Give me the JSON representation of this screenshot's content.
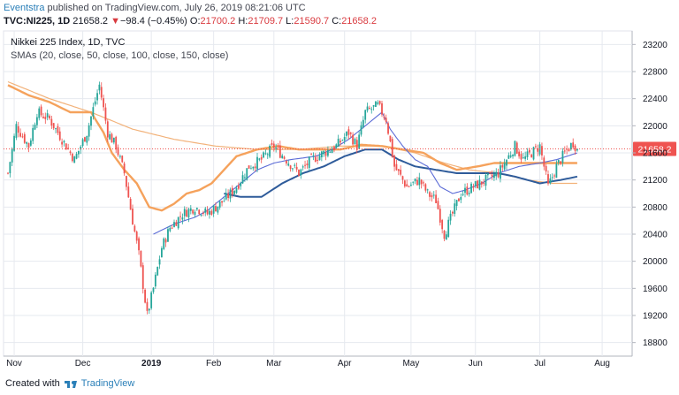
{
  "header": {
    "author": "Eventstra",
    "published_text": " published on TradingView.com, July 26, 2019 08:21:06 UTC",
    "symbol": "TVC:NI225, 1D",
    "last": "21658.2",
    "change_arrow": "▼",
    "change": "−98.4 (−0.45%)",
    "o_label": "O:",
    "o_value": "21700.2",
    "h_label": "H:",
    "h_value": "21709.7",
    "l_label": "L:",
    "l_value": "21590.7",
    "c_label": "C:",
    "c_value": "21658.2"
  },
  "legend": {
    "title": "Nikkei 225 Index, 1D, TVC",
    "smas": "SMAs (20, close, 50, close, 100, close, 150, close)"
  },
  "footer": {
    "created_with": "Created with",
    "brand": "TradingView"
  },
  "colors": {
    "up": "#26a69a",
    "down": "#ef5350",
    "sma20": "#5b6bd6",
    "sma50": "#f5a25c",
    "sma100": "#2e5b9a",
    "sma150": "#f2b27a",
    "last_price_line": "#ef5350",
    "grid": "#e6e9ef",
    "axis_text": "#131722",
    "price_label_bg": "#ef5350"
  },
  "chart_data": {
    "type": "candlestick",
    "title": "Nikkei 225 Index, 1D, TVC",
    "xlabel": "",
    "ylabel": "",
    "x_ticks": [
      "Nov",
      "Dec",
      "2019",
      "Feb",
      "Mar",
      "Apr",
      "May",
      "Jun",
      "Jul",
      "Aug"
    ],
    "y_ticks": [
      18800,
      19200,
      19600,
      20000,
      20400,
      20800,
      21200,
      21600,
      22000,
      22400,
      22800,
      23200
    ],
    "ylim": [
      18600,
      23400
    ],
    "last_price": 21658.2,
    "last_price_label": "21658.2",
    "price_nodes": [
      [
        0,
        21300
      ],
      [
        4,
        22000
      ],
      [
        10,
        21700
      ],
      [
        14,
        22200
      ],
      [
        20,
        22100
      ],
      [
        26,
        21800
      ],
      [
        32,
        21500
      ],
      [
        38,
        21900
      ],
      [
        44,
        22600
      ],
      [
        48,
        21900
      ],
      [
        52,
        21700
      ],
      [
        56,
        21300
      ],
      [
        60,
        20600
      ],
      [
        63,
        20100
      ],
      [
        67,
        19200
      ],
      [
        70,
        19600
      ],
      [
        74,
        20200
      ],
      [
        78,
        20500
      ],
      [
        84,
        20700
      ],
      [
        90,
        20800
      ],
      [
        96,
        20700
      ],
      [
        104,
        20900
      ],
      [
        110,
        21100
      ],
      [
        116,
        21400
      ],
      [
        122,
        21500
      ],
      [
        128,
        21700
      ],
      [
        134,
        21500
      ],
      [
        140,
        21300
      ],
      [
        146,
        21500
      ],
      [
        152,
        21600
      ],
      [
        158,
        21700
      ],
      [
        164,
        21900
      ],
      [
        168,
        21700
      ],
      [
        172,
        22200
      ],
      [
        178,
        22300
      ],
      [
        182,
        22100
      ],
      [
        186,
        21400
      ],
      [
        192,
        21100
      ],
      [
        198,
        21200
      ],
      [
        202,
        21000
      ],
      [
        206,
        20900
      ],
      [
        210,
        20400
      ],
      [
        214,
        20700
      ],
      [
        218,
        21000
      ],
      [
        224,
        21100
      ],
      [
        230,
        21200
      ],
      [
        236,
        21300
      ],
      [
        240,
        21500
      ],
      [
        244,
        21700
      ],
      [
        248,
        21500
      ],
      [
        252,
        21600
      ],
      [
        256,
        21700
      ],
      [
        260,
        21100
      ],
      [
        264,
        21400
      ],
      [
        268,
        21600
      ],
      [
        272,
        21750
      ],
      [
        274,
        21658
      ]
    ],
    "sma_names": [
      "SMA 20",
      "SMA 50",
      "SMA 100",
      "SMA 150"
    ],
    "sma20": [
      [
        70,
        20400
      ],
      [
        80,
        20550
      ],
      [
        90,
        20650
      ],
      [
        96,
        20750
      ],
      [
        104,
        20950
      ],
      [
        112,
        21150
      ],
      [
        120,
        21350
      ],
      [
        128,
        21450
      ],
      [
        136,
        21500
      ],
      [
        148,
        21550
      ],
      [
        156,
        21650
      ],
      [
        164,
        21800
      ],
      [
        172,
        22000
      ],
      [
        180,
        22200
      ],
      [
        184,
        21950
      ],
      [
        190,
        21700
      ],
      [
        196,
        21500
      ],
      [
        202,
        21400
      ],
      [
        208,
        21100
      ],
      [
        214,
        21000
      ],
      [
        220,
        21050
      ],
      [
        228,
        21150
      ],
      [
        236,
        21300
      ],
      [
        246,
        21400
      ],
      [
        256,
        21450
      ],
      [
        264,
        21500
      ],
      [
        274,
        21600
      ]
    ],
    "sma50": [
      [
        0,
        22600
      ],
      [
        10,
        22450
      ],
      [
        20,
        22350
      ],
      [
        30,
        22200
      ],
      [
        40,
        22200
      ],
      [
        46,
        21900
      ],
      [
        50,
        21600
      ],
      [
        56,
        21350
      ],
      [
        62,
        21150
      ],
      [
        68,
        20800
      ],
      [
        74,
        20750
      ],
      [
        80,
        20850
      ],
      [
        86,
        21000
      ],
      [
        92,
        21050
      ],
      [
        98,
        21150
      ],
      [
        104,
        21350
      ],
      [
        110,
        21550
      ],
      [
        120,
        21650
      ],
      [
        130,
        21700
      ],
      [
        140,
        21650
      ],
      [
        150,
        21650
      ],
      [
        160,
        21650
      ],
      [
        170,
        21720
      ],
      [
        180,
        21700
      ],
      [
        190,
        21650
      ],
      [
        200,
        21600
      ],
      [
        208,
        21450
      ],
      [
        216,
        21350
      ],
      [
        226,
        21400
      ],
      [
        234,
        21450
      ],
      [
        244,
        21450
      ],
      [
        256,
        21450
      ],
      [
        266,
        21450
      ],
      [
        274,
        21450
      ]
    ],
    "sma100": [
      [
        104,
        21000
      ],
      [
        112,
        20950
      ],
      [
        122,
        20950
      ],
      [
        132,
        21150
      ],
      [
        142,
        21300
      ],
      [
        152,
        21400
      ],
      [
        162,
        21550
      ],
      [
        172,
        21650
      ],
      [
        180,
        21650
      ],
      [
        188,
        21500
      ],
      [
        196,
        21400
      ],
      [
        206,
        21350
      ],
      [
        216,
        21300
      ],
      [
        226,
        21300
      ],
      [
        236,
        21300
      ],
      [
        244,
        21250
      ],
      [
        256,
        21150
      ],
      [
        266,
        21200
      ],
      [
        274,
        21250
      ]
    ],
    "sma150": [
      [
        0,
        22650
      ],
      [
        20,
        22400
      ],
      [
        40,
        22200
      ],
      [
        60,
        21950
      ],
      [
        80,
        21800
      ],
      [
        100,
        21700
      ],
      [
        120,
        21650
      ],
      [
        140,
        21650
      ],
      [
        160,
        21700
      ],
      [
        180,
        21700
      ],
      [
        196,
        21600
      ],
      [
        210,
        21450
      ],
      [
        222,
        21350
      ],
      [
        236,
        21300
      ],
      [
        250,
        21200
      ],
      [
        262,
        21150
      ],
      [
        274,
        21150
      ]
    ]
  }
}
